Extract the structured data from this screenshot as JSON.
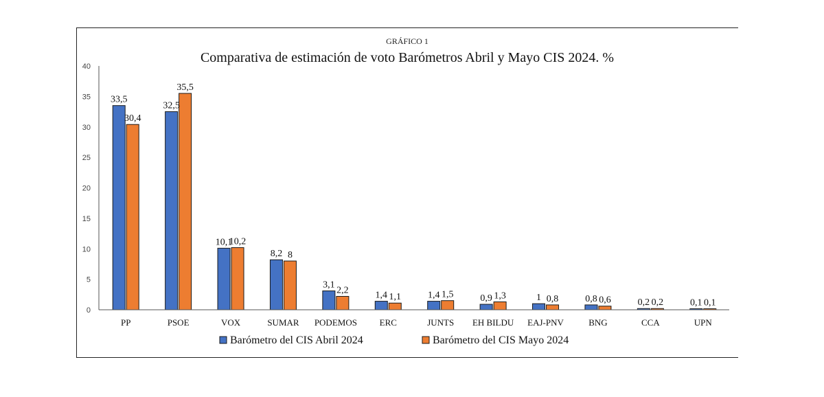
{
  "chart_data": {
    "type": "bar",
    "subtitle": "GRÁFICO 1",
    "title": "Comparativa de estimación de voto Barómetros Abril y Mayo CIS 2024. %",
    "categories": [
      "PP",
      "PSOE",
      "VOX",
      "SUMAR",
      "PODEMOS",
      "ERC",
      "JUNTS",
      "EH BILDU",
      "EAJ-PNV",
      "BNG",
      "CCA",
      "UPN"
    ],
    "series": [
      {
        "name": "Barómetro del CIS Abril 2024",
        "color": "#4472C4",
        "values": [
          33.5,
          32.5,
          10.1,
          8.2,
          3.1,
          1.4,
          1.4,
          0.9,
          1,
          0.8,
          0.2,
          0.1
        ],
        "labels": [
          "33,5",
          "32,5",
          "10,1",
          "8,2",
          "3,1",
          "1,4",
          "1,4",
          "0,9",
          "1",
          "0,8",
          "0,2",
          "0,1"
        ]
      },
      {
        "name": "Barómetro del CIS Mayo 2024",
        "color": "#ED7D31",
        "values": [
          30.4,
          35.5,
          10.2,
          8,
          2.2,
          1.1,
          1.5,
          1.3,
          0.8,
          0.6,
          0.2,
          0.1
        ],
        "labels": [
          "30,4",
          "35,5",
          "10,2",
          "8",
          "2,2",
          "1,1",
          "1,5",
          "1,3",
          "0,8",
          "0,6",
          "0,2",
          "0,1"
        ]
      }
    ],
    "ylim": [
      0,
      40
    ],
    "yticks": [
      "0",
      "5",
      "10",
      "15",
      "20",
      "25",
      "30",
      "35",
      "40"
    ],
    "xlabel": "",
    "ylabel": "",
    "grid": false,
    "legend_position": "bottom"
  }
}
